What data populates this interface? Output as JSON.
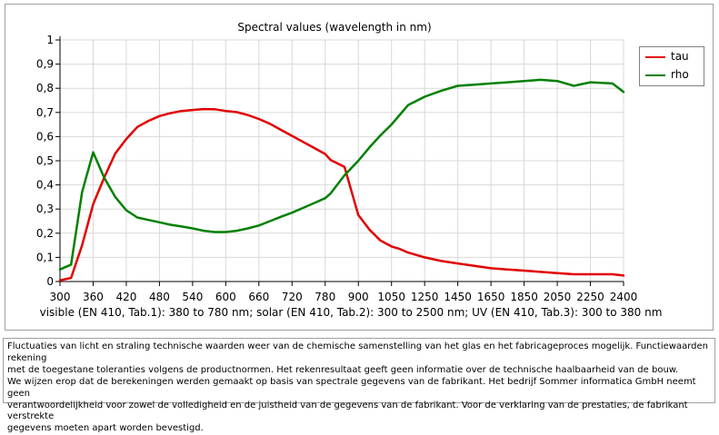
{
  "chart_data": {
    "type": "line",
    "title": "Spectral values  (wavelength in nm)",
    "ylim": [
      0,
      1
    ],
    "y_ticks": [
      "0",
      "0,1",
      "0,2",
      "0,3",
      "0,4",
      "0,5",
      "0,6",
      "0,7",
      "0,8",
      "0,9",
      "1"
    ],
    "x_ticks": [
      "300",
      "360",
      "420",
      "480",
      "540",
      "600",
      "660",
      "720",
      "780",
      "900",
      "1050",
      "1250",
      "1450",
      "1650",
      "1850",
      "2050",
      "2250",
      "2400"
    ],
    "xlabel": "visible (EN 410, Tab.1): 380 to 780 nm;  solar (EN 410, Tab.2): 300 to 2500 nm; UV (EN 410, Tab.3): 300 to 380 nm",
    "legend": [
      "tau",
      "rho"
    ],
    "series": [
      {
        "name": "tau",
        "color": "#e00000",
        "x": [
          300,
          320,
          340,
          360,
          380,
          400,
          420,
          440,
          460,
          480,
          500,
          520,
          540,
          560,
          580,
          600,
          620,
          640,
          660,
          680,
          700,
          720,
          740,
          760,
          780,
          800,
          850,
          900,
          950,
          1000,
          1050,
          1100,
          1150,
          1250,
          1350,
          1450,
          1550,
          1650,
          1750,
          1850,
          1950,
          2050,
          2150,
          2250,
          2350,
          2400
        ],
        "values": [
          0.005,
          0.015,
          0.15,
          0.32,
          0.43,
          0.53,
          0.59,
          0.64,
          0.665,
          0.685,
          0.697,
          0.706,
          0.71,
          0.714,
          0.713,
          0.706,
          0.701,
          0.689,
          0.673,
          0.653,
          0.628,
          0.603,
          0.578,
          0.553,
          0.528,
          0.503,
          0.475,
          0.275,
          0.215,
          0.17,
          0.145,
          0.135,
          0.12,
          0.1,
          0.085,
          0.075,
          0.065,
          0.055,
          0.05,
          0.045,
          0.04,
          0.035,
          0.03,
          0.03,
          0.03,
          0.025
        ]
      },
      {
        "name": "rho",
        "color": "#008000",
        "x": [
          300,
          320,
          340,
          360,
          380,
          400,
          420,
          440,
          460,
          480,
          500,
          520,
          540,
          560,
          580,
          600,
          620,
          640,
          660,
          680,
          700,
          720,
          740,
          760,
          780,
          800,
          850,
          900,
          950,
          1000,
          1050,
          1100,
          1150,
          1250,
          1350,
          1450,
          1550,
          1650,
          1750,
          1850,
          1950,
          2050,
          2150,
          2250,
          2350,
          2400
        ],
        "values": [
          0.05,
          0.07,
          0.37,
          0.535,
          0.43,
          0.35,
          0.295,
          0.265,
          0.255,
          0.245,
          0.235,
          0.228,
          0.22,
          0.21,
          0.205,
          0.205,
          0.21,
          0.22,
          0.232,
          0.25,
          0.268,
          0.285,
          0.305,
          0.325,
          0.345,
          0.365,
          0.44,
          0.5,
          0.555,
          0.605,
          0.65,
          0.69,
          0.73,
          0.765,
          0.79,
          0.81,
          0.815,
          0.82,
          0.825,
          0.83,
          0.835,
          0.83,
          0.81,
          0.825,
          0.82,
          0.785
        ]
      }
    ]
  },
  "notes": {
    "lines": [
      "Fluctuaties van licht en straling technische waarden weer van de chemische samenstelling van het glas en het fabricageproces mogelijk. Functiewaarden rekening",
      "met de toegestane toleranties volgens de productnormen. Het rekenresultaat geeft geen informatie over de technische haalbaarheid van de bouw.",
      "We wijzen erop dat de berekeningen werden gemaakt op basis van spectrale gegevens van de fabrikant. Het bedrijf Sommer informatica GmbH neemt geen",
      "verantwoordelijkheid voor zowel de volledigheid en de juistheid van de gegevens van de fabrikant. Voor de verklaring van de prestaties, de fabrikant verstrekte",
      "gegevens moeten apart worden bevestigd."
    ]
  }
}
